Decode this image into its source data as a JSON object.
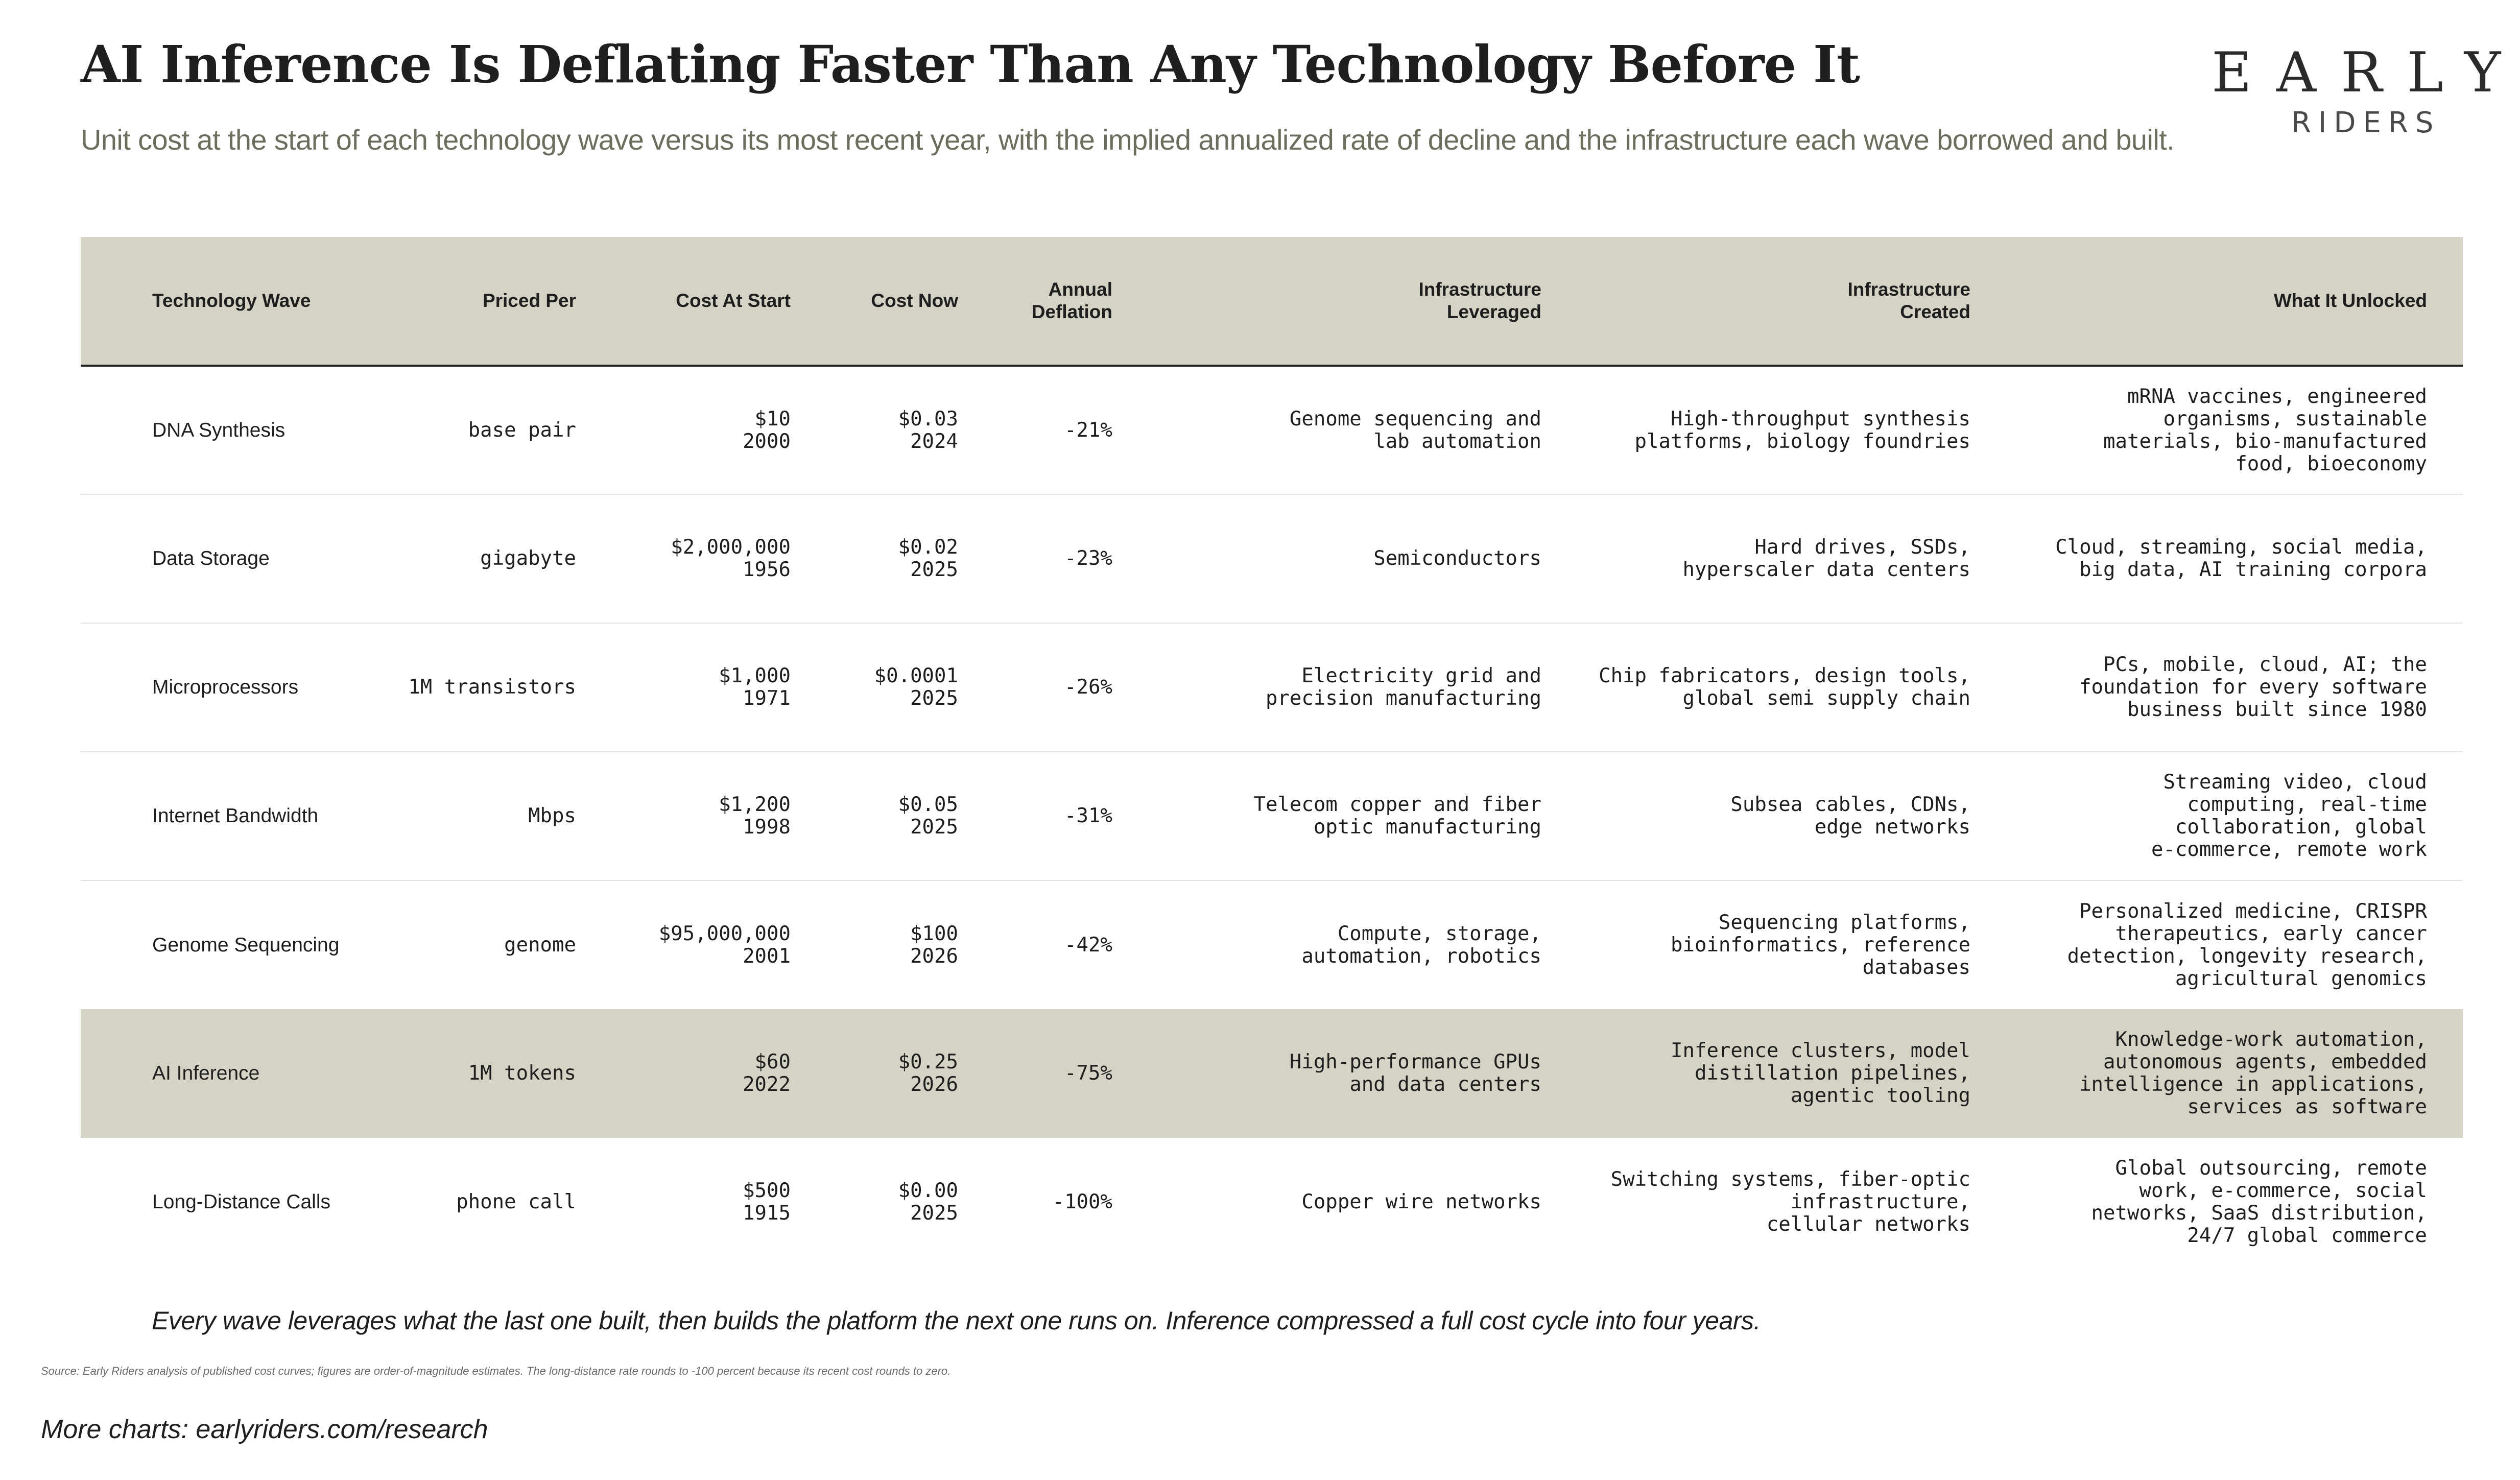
{
  "header": {
    "title": "AI Inference Is Deflating Faster Than Any Technology Before It",
    "subtitle": "Unit cost at the start of each technology wave versus its most recent year, with the implied annualized rate of decline and the infrastructure each wave borrowed and built."
  },
  "logo": {
    "line1": "EARLY",
    "line2": "RIDERS"
  },
  "colors": {
    "header_band": "#d5d3c5",
    "highlight_row": "#d5d3c5",
    "subtitle": "#6b6e5c",
    "text": "#1e1e1e"
  },
  "chart_data": {
    "type": "table",
    "columns": [
      {
        "label": [
          "Technology Wave"
        ]
      },
      {
        "label": [
          "Priced Per"
        ]
      },
      {
        "label": [
          "Cost At Start"
        ]
      },
      {
        "label": [
          "Cost Now"
        ]
      },
      {
        "label": [
          "Annual",
          "Deflation"
        ]
      },
      {
        "label": [
          "Infrastructure",
          "Leveraged"
        ]
      },
      {
        "label": [
          "Infrastructure",
          "Created"
        ]
      },
      {
        "label": [
          "What It Unlocked"
        ]
      }
    ],
    "rows": [
      {
        "wave": "DNA Synthesis",
        "priced_per": "base pair",
        "cost_start": [
          "$10",
          "2000"
        ],
        "cost_now": [
          "$0.03",
          "2024"
        ],
        "deflation": "-21%",
        "leveraged": [
          "Genome sequencing and",
          "lab automation"
        ],
        "created": [
          "High-throughput synthesis",
          "platforms, biology foundries"
        ],
        "unlocked": [
          "mRNA vaccines, engineered",
          "organisms, sustainable",
          "materials, bio-manufactured",
          "food, bioeconomy"
        ],
        "highlight": false
      },
      {
        "wave": "Data Storage",
        "priced_per": "gigabyte",
        "cost_start": [
          "$2,000,000",
          "1956"
        ],
        "cost_now": [
          "$0.02",
          "2025"
        ],
        "deflation": "-23%",
        "leveraged": [
          "Semiconductors"
        ],
        "created": [
          "Hard drives, SSDs,",
          "hyperscaler data centers"
        ],
        "unlocked": [
          "Cloud, streaming, social media,",
          "big data, AI training corpora"
        ],
        "highlight": false
      },
      {
        "wave": "Microprocessors",
        "priced_per": "1M transistors",
        "cost_start": [
          "$1,000",
          "1971"
        ],
        "cost_now": [
          "$0.0001",
          "2025"
        ],
        "deflation": "-26%",
        "leveraged": [
          "Electricity grid and",
          "precision manufacturing"
        ],
        "created": [
          "Chip fabricators, design tools,",
          "global semi supply chain"
        ],
        "unlocked": [
          "PCs, mobile, cloud, AI; the",
          "foundation for every software",
          "business built since 1980"
        ],
        "highlight": false
      },
      {
        "wave": "Internet Bandwidth",
        "priced_per": "Mbps",
        "cost_start": [
          "$1,200",
          "1998"
        ],
        "cost_now": [
          "$0.05",
          "2025"
        ],
        "deflation": "-31%",
        "leveraged": [
          "Telecom copper and fiber",
          "optic manufacturing"
        ],
        "created": [
          "Subsea cables, CDNs,",
          "edge networks"
        ],
        "unlocked": [
          "Streaming video, cloud",
          "computing, real-time",
          "collaboration, global",
          "e-commerce, remote work"
        ],
        "highlight": false
      },
      {
        "wave": "Genome Sequencing",
        "priced_per": "genome",
        "cost_start": [
          "$95,000,000",
          "2001"
        ],
        "cost_now": [
          "$100",
          "2026"
        ],
        "deflation": "-42%",
        "leveraged": [
          "Compute, storage,",
          "automation, robotics"
        ],
        "created": [
          "Sequencing platforms,",
          "bioinformatics, reference",
          "databases"
        ],
        "unlocked": [
          "Personalized medicine, CRISPR",
          "therapeutics, early cancer",
          "detection, longevity research,",
          "agricultural genomics"
        ],
        "highlight": false
      },
      {
        "wave": "AI Inference",
        "priced_per": "1M tokens",
        "cost_start": [
          "$60",
          "2022"
        ],
        "cost_now": [
          "$0.25",
          "2026"
        ],
        "deflation": "-75%",
        "leveraged": [
          "High-performance GPUs",
          "and data centers"
        ],
        "created": [
          "Inference clusters, model",
          "distillation pipelines,",
          "agentic tooling"
        ],
        "unlocked": [
          "Knowledge-work automation,",
          "autonomous agents, embedded",
          "intelligence in applications,",
          "services as software"
        ],
        "highlight": true
      },
      {
        "wave": "Long-Distance Calls",
        "priced_per": "phone call",
        "cost_start": [
          "$500",
          "1915"
        ],
        "cost_now": [
          "$0.00",
          "2025"
        ],
        "deflation": "-100%",
        "leveraged": [
          "Copper wire networks"
        ],
        "created": [
          "Switching systems, fiber-optic",
          "infrastructure,",
          "cellular networks"
        ],
        "unlocked": [
          "Global outsourcing, remote",
          "work, e-commerce, social",
          "networks, SaaS distribution,",
          "24/7 global commerce"
        ],
        "highlight": false
      }
    ]
  },
  "footer": {
    "note": "Every wave leverages what the last one built, then builds the platform the next one runs on. Inference compressed a full cost cycle into four years.",
    "source": "Source: Early Riders analysis of published cost curves; figures are order-of-magnitude estimates. The long-distance rate rounds to -100 percent because its recent cost rounds to zero.",
    "more": "More charts: earlyriders.com/research"
  }
}
